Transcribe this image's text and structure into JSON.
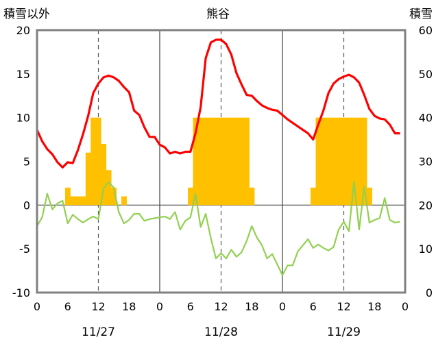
{
  "chart_data": {
    "type": "bar+line",
    "title": "熊谷",
    "left_axis_label": "積雪以外",
    "right_axis_label": "積雪",
    "left_axis": {
      "min": -10,
      "max": 20,
      "ticks": [
        "20",
        "15",
        "10",
        "5",
        "0",
        "-5",
        "-10"
      ]
    },
    "right_axis": {
      "min": 0,
      "max": 60,
      "ticks": [
        "60",
        "50",
        "40",
        "30",
        "20",
        "10",
        "0"
      ]
    },
    "x_hour_ticks": [
      "0",
      "6",
      "12",
      "18",
      "0",
      "6",
      "12",
      "18",
      "0",
      "6",
      "12",
      "18",
      "0"
    ],
    "dates": [
      "11/27",
      "11/28",
      "11/29"
    ],
    "x_range_hours": [
      0,
      72
    ],
    "grid": "dashed vertical lines at 12:00 of each day; solid day separators; solid horizontal line at 0",
    "colors": {
      "bars": "#ffc000",
      "red_series": "#ff0000",
      "green_series": "#92d050",
      "purple_series": "#7030a0",
      "frame": "#808080"
    },
    "bar_series": {
      "axis": "left",
      "hours": [
        6,
        7,
        8,
        9,
        10,
        11,
        12,
        13,
        14,
        15,
        16,
        17,
        30,
        31,
        32,
        33,
        34,
        35,
        36,
        37,
        38,
        39,
        40,
        41,
        42,
        54,
        55,
        56,
        57,
        58,
        59,
        60,
        61,
        62,
        63,
        64,
        65
      ],
      "values": [
        2,
        1,
        1,
        1,
        6,
        10,
        10,
        7,
        4,
        2,
        0,
        1,
        2,
        10,
        10,
        10,
        10,
        10,
        10,
        10,
        10,
        10,
        10,
        10,
        2,
        2,
        10,
        10,
        10,
        10,
        10,
        10,
        10,
        10,
        10,
        10,
        2
      ]
    },
    "line_series": [
      {
        "color": "red",
        "axis": "left",
        "hours": [
          0,
          1,
          2,
          3,
          4,
          5,
          6,
          7,
          8,
          9,
          10,
          11,
          12,
          13,
          14,
          15,
          16,
          17,
          18,
          19,
          20,
          21,
          22,
          23,
          24,
          25,
          26,
          27,
          28,
          29,
          30,
          31,
          32,
          33,
          34,
          35,
          36,
          37,
          38,
          39,
          40,
          41,
          42,
          43,
          44,
          45,
          46,
          47,
          48,
          49,
          50,
          51,
          52,
          53,
          54,
          55,
          56,
          57,
          58,
          59,
          60,
          61,
          62,
          63,
          64,
          65,
          66,
          67,
          68,
          69,
          70,
          71
        ],
        "values": [
          8.6,
          7.3,
          6.4,
          5.8,
          4.9,
          4.3,
          4.9,
          4.8,
          6.3,
          8.1,
          10.2,
          12.8,
          13.9,
          14.6,
          14.8,
          14.6,
          14.2,
          13.5,
          12.9,
          10.8,
          10.3,
          8.9,
          7.8,
          7.8,
          6.9,
          6.6,
          5.9,
          6.1,
          5.9,
          6.1,
          6.1,
          8.2,
          11.2,
          16.8,
          18.6,
          18.9,
          18.9,
          18.4,
          17.2,
          15.1,
          13.8,
          12.6,
          12.5,
          11.9,
          11.4,
          11.1,
          10.9,
          10.8,
          10.3,
          9.8,
          9.4,
          9.0,
          8.6,
          8.2,
          7.5,
          9.2,
          10.8,
          12.8,
          13.9,
          14.4,
          14.7,
          14.9,
          14.6,
          14.0,
          12.6,
          11.0,
          10.2,
          9.9,
          9.8,
          9.2,
          8.2,
          8.2
        ]
      },
      {
        "color": "green",
        "axis": "left",
        "hours": [
          0,
          1,
          2,
          3,
          4,
          5,
          6,
          7,
          8,
          9,
          10,
          11,
          12,
          13,
          14,
          15,
          16,
          17,
          18,
          19,
          20,
          21,
          22,
          23,
          24,
          25,
          26,
          27,
          28,
          29,
          30,
          31,
          32,
          33,
          34,
          35,
          36,
          37,
          38,
          39,
          40,
          41,
          42,
          43,
          44,
          45,
          46,
          47,
          48,
          49,
          50,
          51,
          52,
          53,
          54,
          55,
          56,
          57,
          58,
          59,
          60,
          61,
          62,
          63,
          64,
          65,
          66,
          67,
          68,
          69,
          70,
          71
        ],
        "values": [
          -2.4,
          -1.4,
          1.3,
          -0.5,
          0.2,
          0.5,
          -2.1,
          -1.1,
          -1.6,
          -2.0,
          -1.6,
          -1.3,
          -1.6,
          1.9,
          2.6,
          2.0,
          -0.8,
          -2.1,
          -1.7,
          -1.0,
          -1.0,
          -1.8,
          -1.6,
          -1.5,
          -1.4,
          -1.3,
          -1.6,
          -0.8,
          -2.8,
          -1.8,
          -1.4,
          1.3,
          -2.5,
          -1.0,
          -3.8,
          -6.1,
          -5.5,
          -6.1,
          -5.1,
          -5.9,
          -5.4,
          -4.1,
          -2.4,
          -3.7,
          -4.6,
          -6.1,
          -5.6,
          -6.8,
          -8.0,
          -6.9,
          -6.9,
          -5.3,
          -4.6,
          -3.9,
          -4.9,
          -4.5,
          -4.9,
          -5.2,
          -4.8,
          -2.8,
          -1.9,
          -3.0,
          2.7,
          -2.8,
          2.1,
          -2.0,
          -1.7,
          -1.5,
          0.8,
          -1.7,
          -2.0,
          -1.9
        ]
      },
      {
        "color": "purple",
        "axis": "right",
        "hours": [
          36,
          71
        ],
        "values": [
          0,
          0
        ]
      }
    ]
  }
}
